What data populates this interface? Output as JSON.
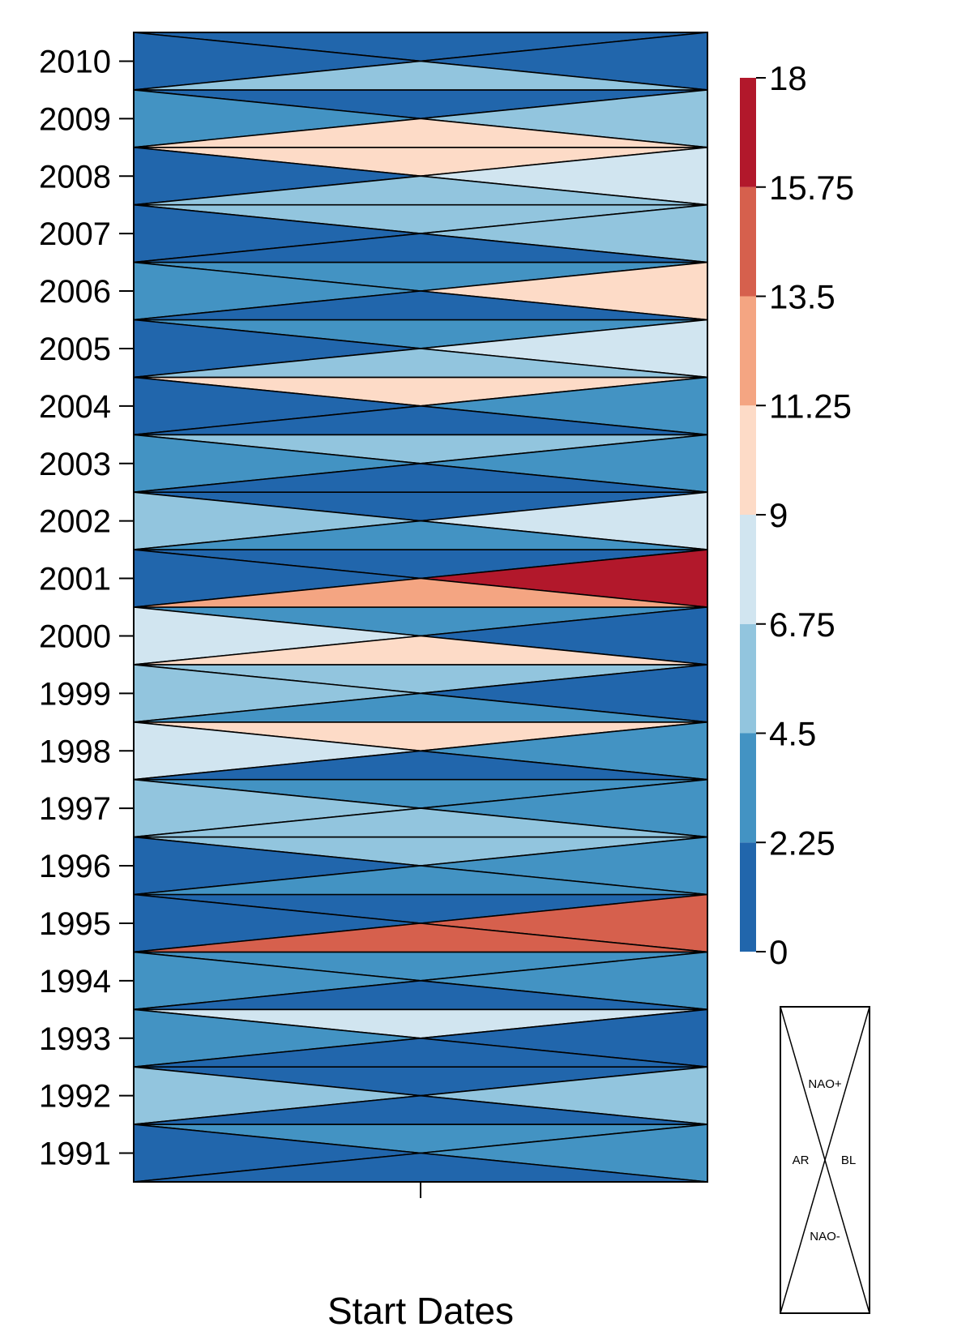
{
  "chart_data": {
    "type": "heatmap",
    "title": "",
    "xlabel": "Start Dates",
    "ylabel": "",
    "years": [
      1991,
      1992,
      1993,
      1994,
      1995,
      1996,
      1997,
      1998,
      1999,
      2000,
      2001,
      2002,
      2003,
      2004,
      2005,
      2006,
      2007,
      2008,
      2009,
      2010
    ],
    "triangle_order": [
      "NAO+",
      "AR",
      "BL",
      "NAO-"
    ],
    "values": [
      {
        "year": 1991,
        "NAO+": 3.4,
        "AR": 1.2,
        "BL": 3.4,
        "NAO-": 1.2
      },
      {
        "year": 1992,
        "NAO+": 1.2,
        "AR": 5.5,
        "BL": 5.5,
        "NAO-": 1.2
      },
      {
        "year": 1993,
        "NAO+": 7.8,
        "AR": 3.4,
        "BL": 1.2,
        "NAO-": 1.2
      },
      {
        "year": 1994,
        "NAO+": 3.4,
        "AR": 3.4,
        "BL": 3.4,
        "NAO-": 1.2
      },
      {
        "year": 1995,
        "NAO+": 1.2,
        "AR": 1.2,
        "BL": 14.5,
        "NAO-": 14.5
      },
      {
        "year": 1996,
        "NAO+": 5.5,
        "AR": 1.2,
        "BL": 3.4,
        "NAO-": 3.4
      },
      {
        "year": 1997,
        "NAO+": 3.4,
        "AR": 5.5,
        "BL": 3.4,
        "NAO-": 5.5
      },
      {
        "year": 1998,
        "NAO+": 10.1,
        "AR": 7.8,
        "BL": 3.4,
        "NAO-": 1.2
      },
      {
        "year": 1999,
        "NAO+": 5.5,
        "AR": 5.5,
        "BL": 1.2,
        "NAO-": 3.4
      },
      {
        "year": 2000,
        "NAO+": 3.4,
        "AR": 7.8,
        "BL": 1.2,
        "NAO-": 10.1
      },
      {
        "year": 2001,
        "NAO+": 1.2,
        "AR": 1.2,
        "BL": 17.0,
        "NAO-": 12.4
      },
      {
        "year": 2002,
        "NAO+": 1.2,
        "AR": 5.5,
        "BL": 7.8,
        "NAO-": 3.4
      },
      {
        "year": 2003,
        "NAO+": 5.5,
        "AR": 3.4,
        "BL": 3.4,
        "NAO-": 1.2
      },
      {
        "year": 2004,
        "NAO+": 10.1,
        "AR": 1.2,
        "BL": 3.4,
        "NAO-": 1.2
      },
      {
        "year": 2005,
        "NAO+": 3.4,
        "AR": 1.2,
        "BL": 7.8,
        "NAO-": 5.5
      },
      {
        "year": 2006,
        "NAO+": 3.4,
        "AR": 3.4,
        "BL": 10.1,
        "NAO-": 1.2
      },
      {
        "year": 2007,
        "NAO+": 5.5,
        "AR": 1.2,
        "BL": 5.5,
        "NAO-": 1.2
      },
      {
        "year": 2008,
        "NAO+": 10.1,
        "AR": 1.2,
        "BL": 7.8,
        "NAO-": 5.5
      },
      {
        "year": 2009,
        "NAO+": 1.2,
        "AR": 3.4,
        "BL": 5.5,
        "NAO-": 10.1
      },
      {
        "year": 2010,
        "NAO+": 1.2,
        "AR": 1.2,
        "BL": 1.2,
        "NAO-": 5.5
      }
    ],
    "colorbar": {
      "breaks": [
        0,
        2.25,
        4.5,
        6.75,
        9,
        11.25,
        13.5,
        15.75,
        18
      ],
      "tick_labels": [
        "0",
        "2.25",
        "4.5",
        "6.75",
        "9",
        "11.25",
        "13.5",
        "15.75",
        "18"
      ],
      "colors": [
        "#2166ac",
        "#4393c3",
        "#92c5de",
        "#d1e5f0",
        "#fddbc7",
        "#f4a582",
        "#d6604d",
        "#b2182b"
      ]
    },
    "legend": {
      "position": "bottom-right",
      "labels": {
        "top": "NAO+",
        "left": "AR",
        "right": "BL",
        "bottom": "NAO-"
      }
    },
    "grid": false
  }
}
